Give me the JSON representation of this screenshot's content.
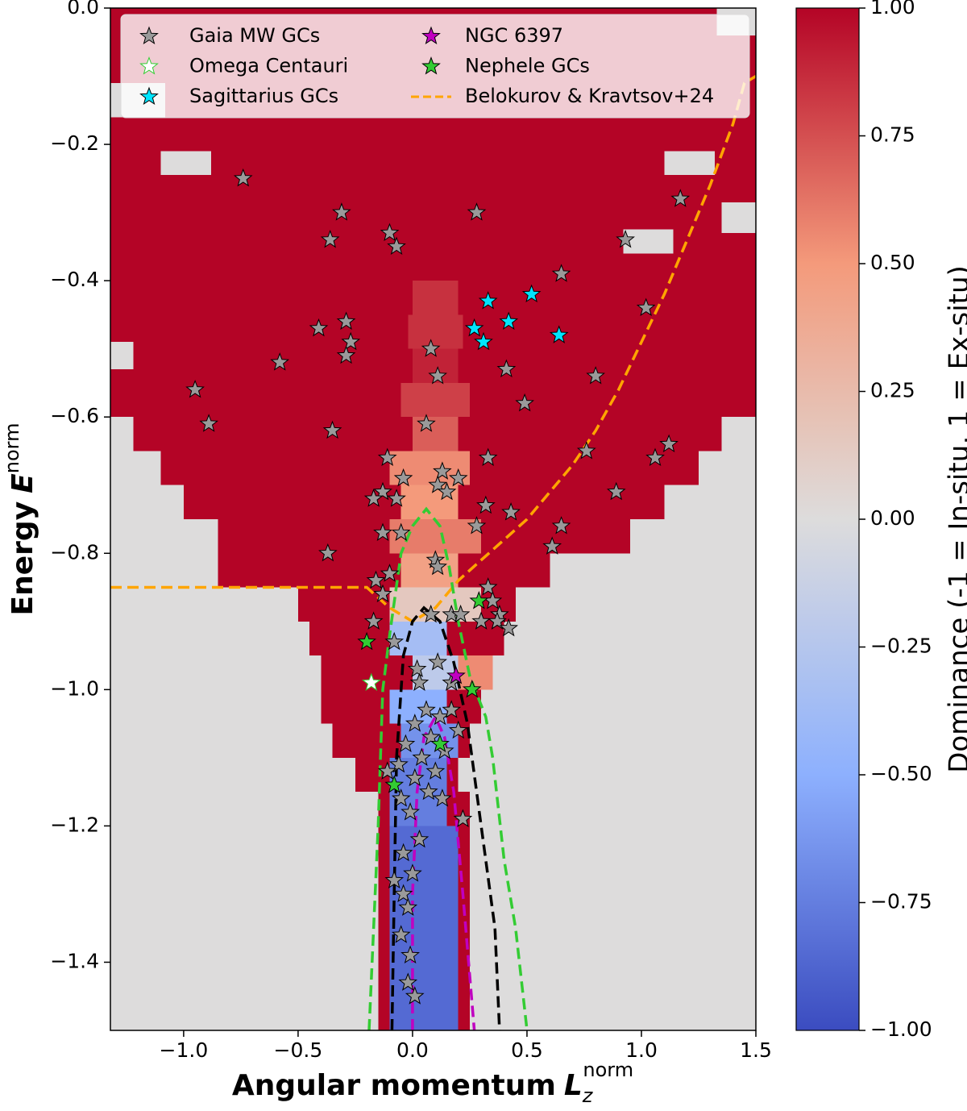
{
  "chart_data": {
    "type": "hexbin",
    "xlabel": {
      "text": "Angular momentum",
      "symbol": "L",
      "sub": "z",
      "sup": "norm"
    },
    "ylabel": {
      "text": "Energy",
      "symbol": "E",
      "sup": "norm"
    },
    "xlim": [
      -1.32,
      1.5
    ],
    "ylim": [
      -1.5,
      0
    ],
    "xticks": [
      {
        "value": -1.0,
        "label": "−1.0"
      },
      {
        "value": -0.5,
        "label": "−0.5"
      },
      {
        "value": 0,
        "label": "0.0"
      },
      {
        "value": 0.5,
        "label": "0.5"
      },
      {
        "value": 1.0,
        "label": "1.0"
      },
      {
        "value": 1.5,
        "label": "1.5"
      }
    ],
    "yticks": [
      {
        "value": 0,
        "label": "0.0"
      },
      {
        "value": -0.2,
        "label": "−0.2"
      },
      {
        "value": -0.4,
        "label": "−0.4"
      },
      {
        "value": -0.6,
        "label": "−0.6"
      },
      {
        "value": -0.8,
        "label": "−0.8"
      },
      {
        "value": -1.0,
        "label": "−1.0"
      },
      {
        "value": -1.2,
        "label": "−1.2"
      },
      {
        "value": -1.4,
        "label": "−1.4"
      }
    ],
    "colormap": "coolwarm",
    "colorbar": {
      "label": "Dominance (-1 = In-situ, 1 = Ex-situ)",
      "lim": [
        -1,
        1
      ],
      "ticks": [
        {
          "value": 1,
          "label": "1.00"
        },
        {
          "value": 0.75,
          "label": "0.75"
        },
        {
          "value": 0.5,
          "label": "0.50"
        },
        {
          "value": 0.25,
          "label": "0.25"
        },
        {
          "value": 0,
          "label": "0.00"
        },
        {
          "value": -0.25,
          "label": "−0.25"
        },
        {
          "value": -0.5,
          "label": "−0.50"
        },
        {
          "value": -0.75,
          "label": "−0.75"
        },
        {
          "value": -1,
          "label": "−1.00"
        }
      ]
    },
    "background_value": 0,
    "cells": [
      {
        "x0": -1.32,
        "x1": 1.5,
        "y0": 0,
        "y1": -0.6,
        "value": 1
      },
      {
        "x0": 1.33,
        "x1": 1.5,
        "y0": 0,
        "y1": -0.04,
        "value": 0
      },
      {
        "x0": -1.32,
        "x1": -1.08,
        "y0": -0.11,
        "y1": -0.16,
        "value": 0
      },
      {
        "x0": -1.1,
        "x1": -0.88,
        "y0": -0.21,
        "y1": -0.245,
        "value": 0
      },
      {
        "x0": 1.1,
        "x1": 1.32,
        "y0": -0.21,
        "y1": -0.245,
        "value": 0
      },
      {
        "x0": 1.35,
        "x1": 1.5,
        "y0": -0.285,
        "y1": -0.33,
        "value": 0
      },
      {
        "x0": 0.92,
        "x1": 1.14,
        "y0": -0.325,
        "y1": -0.36,
        "value": 0
      },
      {
        "x0": -1.32,
        "x1": -1.22,
        "y0": -0.49,
        "y1": -0.53,
        "value": 0
      },
      {
        "x0": -1.22,
        "x1": 1.35,
        "y0": -0.6,
        "y1": -0.65,
        "value": 1
      },
      {
        "x0": -1.1,
        "x1": 1.25,
        "y0": -0.65,
        "y1": -0.7,
        "value": 1
      },
      {
        "x0": -1.0,
        "x1": 1.1,
        "y0": -0.7,
        "y1": -0.75,
        "value": 1
      },
      {
        "x0": -0.85,
        "x1": 0.95,
        "y0": -0.75,
        "y1": -0.8,
        "value": 1
      },
      {
        "x0": -0.85,
        "x1": 0.6,
        "y0": -0.8,
        "y1": -0.85,
        "value": 1
      },
      {
        "x0": -0.5,
        "x1": 0.45,
        "y0": -0.85,
        "y1": -0.9,
        "value": 1
      },
      {
        "x0": -0.45,
        "x1": 0.4,
        "y0": -0.9,
        "y1": -0.95,
        "value": 1
      },
      {
        "x0": -0.4,
        "x1": 0.35,
        "y0": -0.95,
        "y1": -1.0,
        "value": 1
      },
      {
        "x0": -0.4,
        "x1": 0.3,
        "y0": -1.0,
        "y1": -1.05,
        "value": 1
      },
      {
        "x0": -0.35,
        "x1": 0.25,
        "y0": -1.05,
        "y1": -1.1,
        "value": 1
      },
      {
        "x0": -0.25,
        "x1": 0.2,
        "y0": -1.1,
        "y1": -1.15,
        "value": 1
      },
      {
        "x0": -0.15,
        "x1": 0.25,
        "y0": -1.15,
        "y1": -1.5,
        "value": 1
      },
      {
        "x0": 0.0,
        "x1": 0.2,
        "y0": -0.4,
        "y1": -0.45,
        "value": 0.85
      },
      {
        "x0": -0.02,
        "x1": 0.22,
        "y0": -0.45,
        "y1": -0.5,
        "value": 0.85
      },
      {
        "x0": 0.0,
        "x1": 0.2,
        "y0": -0.5,
        "y1": -0.55,
        "value": 0.9
      },
      {
        "x0": -0.05,
        "x1": 0.25,
        "y0": -0.55,
        "y1": -0.6,
        "value": 0.8
      },
      {
        "x0": 0.0,
        "x1": 0.2,
        "y0": -0.6,
        "y1": -0.65,
        "value": 0.7
      },
      {
        "x0": -0.1,
        "x1": 0.25,
        "y0": -0.65,
        "y1": -0.7,
        "value": 0.55
      },
      {
        "x0": -0.05,
        "x1": 0.2,
        "y0": -0.7,
        "y1": -0.75,
        "value": 0.5
      },
      {
        "x0": -0.1,
        "x1": 0.3,
        "y0": -0.75,
        "y1": -0.8,
        "value": 0.6
      },
      {
        "x0": -0.05,
        "x1": 0.2,
        "y0": -0.8,
        "y1": -0.85,
        "value": 0.45
      },
      {
        "x0": -0.1,
        "x1": 0.3,
        "y0": -0.85,
        "y1": -0.9,
        "value": 0.15
      },
      {
        "x0": -0.1,
        "x1": 0.15,
        "y0": -0.9,
        "y1": -0.95,
        "value": -0.35
      },
      {
        "x0": 0.0,
        "x1": 0.2,
        "y0": -0.95,
        "y1": -1.0,
        "value": -0.2
      },
      {
        "x0": 0.2,
        "x1": 0.35,
        "y0": -0.95,
        "y1": -1.0,
        "value": 0.55
      },
      {
        "x0": -0.1,
        "x1": 0.15,
        "y0": -1.0,
        "y1": -1.05,
        "value": -0.5
      },
      {
        "x0": -0.05,
        "x1": 0.2,
        "y0": -1.05,
        "y1": -1.1,
        "value": -0.65
      },
      {
        "x0": -0.1,
        "x1": 0.15,
        "y0": -1.1,
        "y1": -1.2,
        "value": -0.75
      },
      {
        "x0": -0.1,
        "x1": 0.2,
        "y0": -1.2,
        "y1": -1.5,
        "value": -0.85
      }
    ],
    "legend": "upper center",
    "series": [
      {
        "kind": "scatter",
        "name": "Gaia MW GCs",
        "color": "#9a9a9a",
        "edgecolor": "#000000",
        "x": [
          -0.74,
          -0.31,
          -0.36,
          0.28,
          -0.1,
          -0.07,
          1.17,
          0.93,
          0.65,
          1.02,
          -0.41,
          -0.29,
          -0.27,
          -0.29,
          -0.58,
          0.08,
          -0.95,
          -0.89,
          -0.35,
          0.11,
          0.41,
          0.49,
          0.8,
          0.06,
          0.76,
          1.12,
          1.06,
          0.89,
          0.33,
          -0.11,
          -0.04,
          0.13,
          0.2,
          0.11,
          -0.13,
          -0.07,
          -0.17,
          0.15,
          0.32,
          0.43,
          -0.13,
          -0.05,
          0.28,
          0.65,
          0.61,
          -0.37,
          0.1,
          0.11,
          -0.16,
          -0.1,
          -0.13,
          0.33,
          0.35,
          0.08,
          0.17,
          0.21,
          0.3,
          0.38,
          0.37,
          0.42,
          -0.17,
          -0.08,
          0.02,
          0.11,
          0.03,
          0.17,
          0.06,
          0.12,
          0.17,
          0.2,
          0.01,
          -0.03,
          0.08,
          0.14,
          0.04,
          -0.06,
          0.1,
          0.01,
          -0.11,
          0.07,
          -0.05,
          0.13,
          0.22,
          -0.01,
          0.03,
          -0.04,
          0.0,
          -0.04,
          -0.02,
          -0.05,
          -0.01,
          -0.02,
          0.01,
          -0.08
        ],
        "values": [
          -0.25,
          -0.3,
          -0.34,
          -0.3,
          -0.33,
          -0.35,
          -0.28,
          -0.34,
          -0.39,
          -0.44,
          -0.47,
          -0.46,
          -0.49,
          -0.51,
          -0.52,
          -0.5,
          -0.56,
          -0.61,
          -0.62,
          -0.54,
          -0.53,
          -0.58,
          -0.54,
          -0.61,
          -0.65,
          -0.64,
          -0.66,
          -0.71,
          -0.66,
          -0.66,
          -0.69,
          -0.68,
          -0.69,
          -0.7,
          -0.71,
          -0.72,
          -0.72,
          -0.71,
          -0.73,
          -0.74,
          -0.77,
          -0.77,
          -0.76,
          -0.76,
          -0.79,
          -0.8,
          -0.81,
          -0.82,
          -0.84,
          -0.83,
          -0.86,
          -0.85,
          -0.87,
          -0.89,
          -0.89,
          -0.89,
          -0.9,
          -0.89,
          -0.9,
          -0.91,
          -0.9,
          -0.93,
          -0.97,
          -0.96,
          -0.99,
          -0.99,
          -1.03,
          -1.04,
          -1.03,
          -1.06,
          -1.05,
          -1.08,
          -1.07,
          -1.09,
          -1.1,
          -1.11,
          -1.12,
          -1.13,
          -1.12,
          -1.15,
          -1.16,
          -1.16,
          -1.19,
          -1.18,
          -1.22,
          -1.24,
          -1.27,
          -1.3,
          -1.32,
          -1.36,
          -1.39,
          -1.43,
          -1.45,
          -1.28
        ]
      },
      {
        "kind": "scatter",
        "name": "Omega Centauri",
        "color": "#ffffff",
        "edgecolor": "#32cd32",
        "x": [
          -0.18
        ],
        "values": [
          -0.99
        ]
      },
      {
        "kind": "scatter",
        "name": "Sagittarius GCs",
        "color": "#00e5ff",
        "edgecolor": "#000000",
        "x": [
          0.33,
          0.52,
          0.42,
          0.27,
          0.31,
          0.64
        ],
        "values": [
          -0.43,
          -0.42,
          -0.46,
          -0.47,
          -0.49,
          -0.48
        ]
      },
      {
        "kind": "scatter",
        "name": "NGC 6397",
        "color": "#c000c0",
        "edgecolor": "#000000",
        "x": [
          0.19
        ],
        "values": [
          -0.98
        ]
      },
      {
        "kind": "scatter",
        "name": "Nephele GCs",
        "color": "#33cc33",
        "edgecolor": "#000000",
        "x": [
          0.29,
          -0.2,
          0.26,
          0.12,
          -0.08
        ],
        "values": [
          -0.87,
          -0.93,
          -1.0,
          -1.08,
          -1.14
        ]
      },
      {
        "kind": "line",
        "name": "Belokurov & Kravtsov+24",
        "color": "#ffa500",
        "dashed": true,
        "x": [
          -1.32,
          -0.5,
          -0.2,
          -0.1,
          0.0,
          0.1,
          0.2,
          0.3,
          0.4,
          0.5,
          0.6,
          0.7,
          0.8,
          0.9,
          1.0,
          1.1,
          1.2,
          1.3,
          1.4,
          1.45,
          1.5
        ],
        "values": [
          -0.85,
          -0.85,
          -0.85,
          -0.88,
          -0.9,
          -0.88,
          -0.84,
          -0.81,
          -0.78,
          -0.75,
          -0.71,
          -0.67,
          -0.62,
          -0.56,
          -0.49,
          -0.42,
          -0.34,
          -0.26,
          -0.17,
          -0.11,
          -0.1
        ]
      },
      {
        "kind": "line",
        "color": "#33cc33",
        "dashed": true,
        "x": [
          -0.19,
          -0.15,
          -0.13,
          -0.1,
          -0.05,
          0.0,
          0.06,
          0.12,
          0.16,
          0.2,
          0.25,
          0.32,
          0.35,
          0.4,
          0.45,
          0.5
        ],
        "values": [
          -1.5,
          -1.2,
          -1.0,
          -0.92,
          -0.8,
          -0.76,
          -0.735,
          -0.76,
          -0.82,
          -0.9,
          -0.98,
          -1.04,
          -1.1,
          -1.25,
          -1.35,
          -1.5
        ]
      },
      {
        "kind": "line",
        "color": "#000000",
        "dashed": true,
        "x": [
          -0.09,
          -0.08,
          -0.07,
          -0.04,
          0.0,
          0.05,
          0.12,
          0.18,
          0.24,
          0.3,
          0.36,
          0.38
        ],
        "values": [
          -1.5,
          -1.3,
          -1.1,
          -0.95,
          -0.9,
          -0.88,
          -0.9,
          -0.96,
          -1.05,
          -1.2,
          -1.35,
          -1.5
        ]
      },
      {
        "kind": "line",
        "color": "#c000c0",
        "dashed": true,
        "x": [
          0.0,
          0.0,
          0.02,
          0.05,
          0.1,
          0.14,
          0.18,
          0.22,
          0.27
        ],
        "values": [
          -1.5,
          -1.3,
          -1.15,
          -1.07,
          -1.04,
          -1.07,
          -1.15,
          -1.3,
          -1.5
        ]
      }
    ]
  }
}
